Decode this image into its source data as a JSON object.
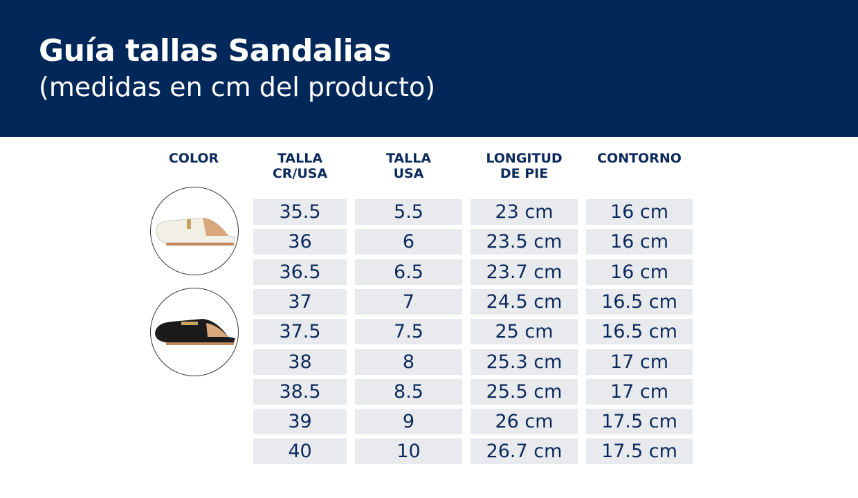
{
  "header": {
    "title": "Guía tallas Sandalias",
    "subtitle": "(medidas en cm del producto)"
  },
  "colors": {
    "banner": "#02285a",
    "cell": "#e9eaee",
    "text": "#0b2a5b"
  },
  "columns": {
    "color": "COLOR",
    "talla_cr_usa": [
      "TALLA",
      "CR/USA"
    ],
    "talla_usa": [
      "TALLA",
      "USA"
    ],
    "longitud": [
      "LONGITUD",
      "DE PIE"
    ],
    "contorno": "CONTORNO"
  },
  "color_swatches": [
    "white-mule-shoe",
    "black-mule-shoe"
  ],
  "rows": [
    {
      "cr": "35.5",
      "usa": "5.5",
      "len": "23 cm",
      "cont": "16 cm"
    },
    {
      "cr": "36",
      "usa": "6",
      "len": "23.5 cm",
      "cont": "16 cm"
    },
    {
      "cr": "36.5",
      "usa": "6.5",
      "len": "23.7 cm",
      "cont": "16 cm"
    },
    {
      "cr": "37",
      "usa": "7",
      "len": "24.5 cm",
      "cont": "16.5 cm"
    },
    {
      "cr": "37.5",
      "usa": "7.5",
      "len": "25 cm",
      "cont": "16.5 cm"
    },
    {
      "cr": "38",
      "usa": "8",
      "len": "25.3 cm",
      "cont": "17 cm"
    },
    {
      "cr": "38.5",
      "usa": "8.5",
      "len": "25.5 cm",
      "cont": "17 cm"
    },
    {
      "cr": "39",
      "usa": "9",
      "len": "26 cm",
      "cont": "17.5 cm"
    },
    {
      "cr": "40",
      "usa": "10",
      "len": "26.7 cm",
      "cont": "17.5 cm"
    }
  ]
}
